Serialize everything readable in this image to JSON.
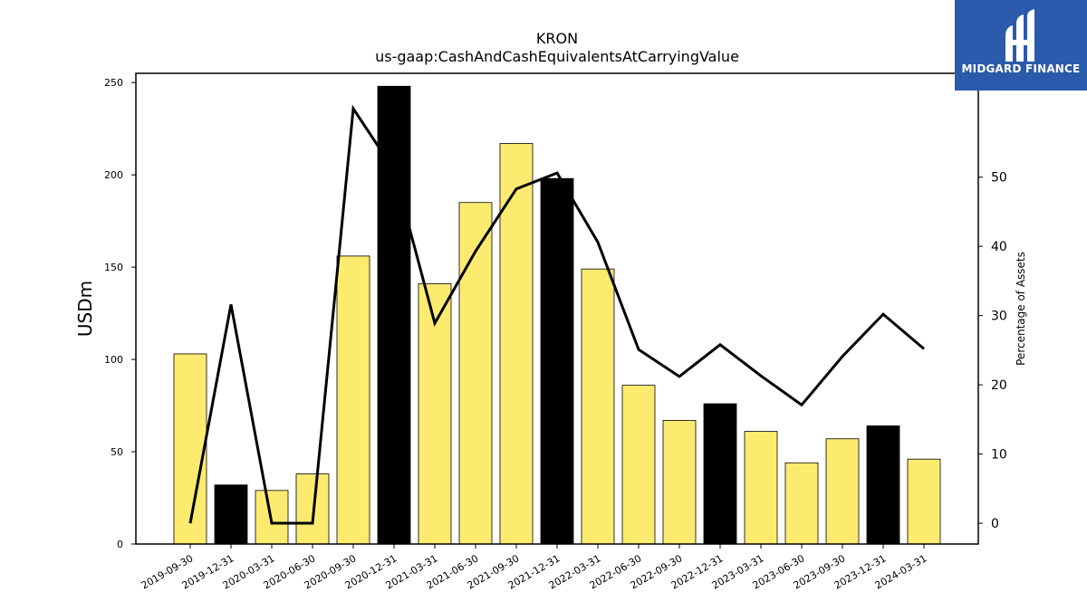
{
  "logo": {
    "text": "MIDGARD FINANCE"
  },
  "colors": {
    "bar_default": "#fdeb70",
    "bar_highlight": "#000000",
    "line": "#000000",
    "logo_bg": "#2a5aab"
  },
  "chart_data": {
    "type": "bar",
    "title": "KRON",
    "subtitle": "us-gaap:CashAndCashEquivalentsAtCarryingValue",
    "ylabel": "USDm",
    "y2label": "Percentage of Assets",
    "ylim": [
      0,
      255
    ],
    "y2lim": [
      -3,
      65
    ],
    "yticks": [
      0,
      50,
      100,
      150,
      200,
      250
    ],
    "y2ticks": [
      0,
      10,
      20,
      30,
      40,
      50
    ],
    "categories": [
      "2019-09-30",
      "2019-12-31",
      "2020-03-31",
      "2020-06-30",
      "2020-09-30",
      "2020-12-31",
      "2021-03-31",
      "2021-06-30",
      "2021-09-30",
      "2021-12-31",
      "2022-03-31",
      "2022-06-30",
      "2022-09-30",
      "2022-12-31",
      "2023-03-31",
      "2023-06-30",
      "2023-09-30",
      "2023-12-31",
      "2024-03-31"
    ],
    "series": [
      {
        "kind": "bar",
        "axis": "left",
        "values": [
          103,
          32,
          29,
          38,
          156,
          248,
          141,
          185,
          217,
          198,
          149,
          86,
          67,
          76,
          61,
          44,
          57,
          64,
          46
        ],
        "highlight": [
          false,
          true,
          false,
          false,
          false,
          true,
          false,
          false,
          false,
          true,
          false,
          false,
          false,
          true,
          false,
          false,
          false,
          true,
          false
        ]
      },
      {
        "kind": "line",
        "axis": "right",
        "values": [
          0,
          31.6,
          0,
          0,
          59.9,
          51,
          28.9,
          39.3,
          48.3,
          50.6,
          40.6,
          25.1,
          21.2,
          25.8,
          21.3,
          17.1,
          24.1,
          30.2,
          25.2
        ]
      }
    ],
    "grid": false,
    "legend": "none"
  }
}
